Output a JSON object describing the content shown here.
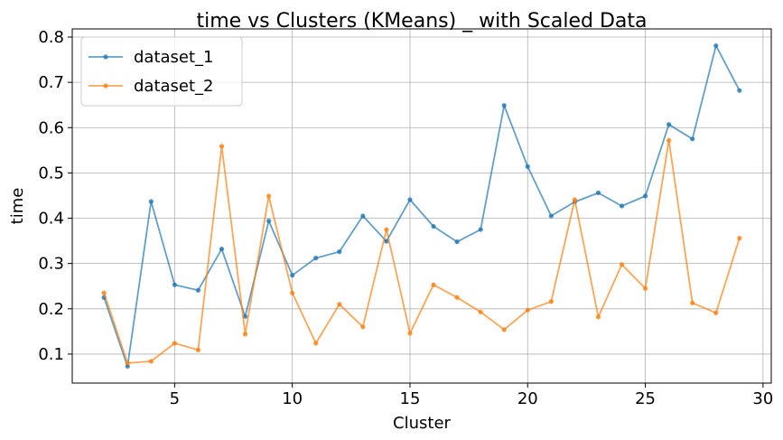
{
  "chart_data": {
    "type": "line",
    "title": "time vs Clusters (KMeans) _ with Scaled Data",
    "xlabel": "Cluster",
    "ylabel": "time",
    "xlim": [
      0.65,
      30.35
    ],
    "ylim": [
      0.036,
      0.818
    ],
    "xticks": [
      5,
      10,
      15,
      20,
      25,
      30
    ],
    "yticks": [
      0.1,
      0.2,
      0.3,
      0.4,
      0.5,
      0.6,
      0.7,
      0.8
    ],
    "grid": true,
    "legend_position": "top-left",
    "x": [
      2,
      3,
      4,
      5,
      6,
      7,
      8,
      9,
      10,
      11,
      12,
      13,
      14,
      15,
      16,
      17,
      18,
      19,
      20,
      21,
      22,
      23,
      24,
      25,
      26,
      27,
      28,
      29
    ],
    "series": [
      {
        "name": "dataset_1",
        "color": "#1f77b4",
        "values": [
          0.225,
          0.073,
          0.437,
          0.253,
          0.241,
          0.332,
          0.183,
          0.394,
          0.274,
          0.312,
          0.326,
          0.405,
          0.349,
          0.441,
          0.382,
          0.348,
          0.375,
          0.649,
          0.514,
          0.405,
          0.436,
          0.456,
          0.427,
          0.449,
          0.607,
          0.575,
          0.781,
          0.682
        ]
      },
      {
        "name": "dataset_2",
        "color": "#ff7f0e",
        "values": [
          0.235,
          0.08,
          0.084,
          0.124,
          0.109,
          0.559,
          0.144,
          0.449,
          0.235,
          0.124,
          0.21,
          0.16,
          0.375,
          0.146,
          0.253,
          0.225,
          0.193,
          0.154,
          0.197,
          0.216,
          0.441,
          0.182,
          0.298,
          0.245,
          0.572,
          0.213,
          0.191,
          0.356
        ]
      }
    ]
  }
}
